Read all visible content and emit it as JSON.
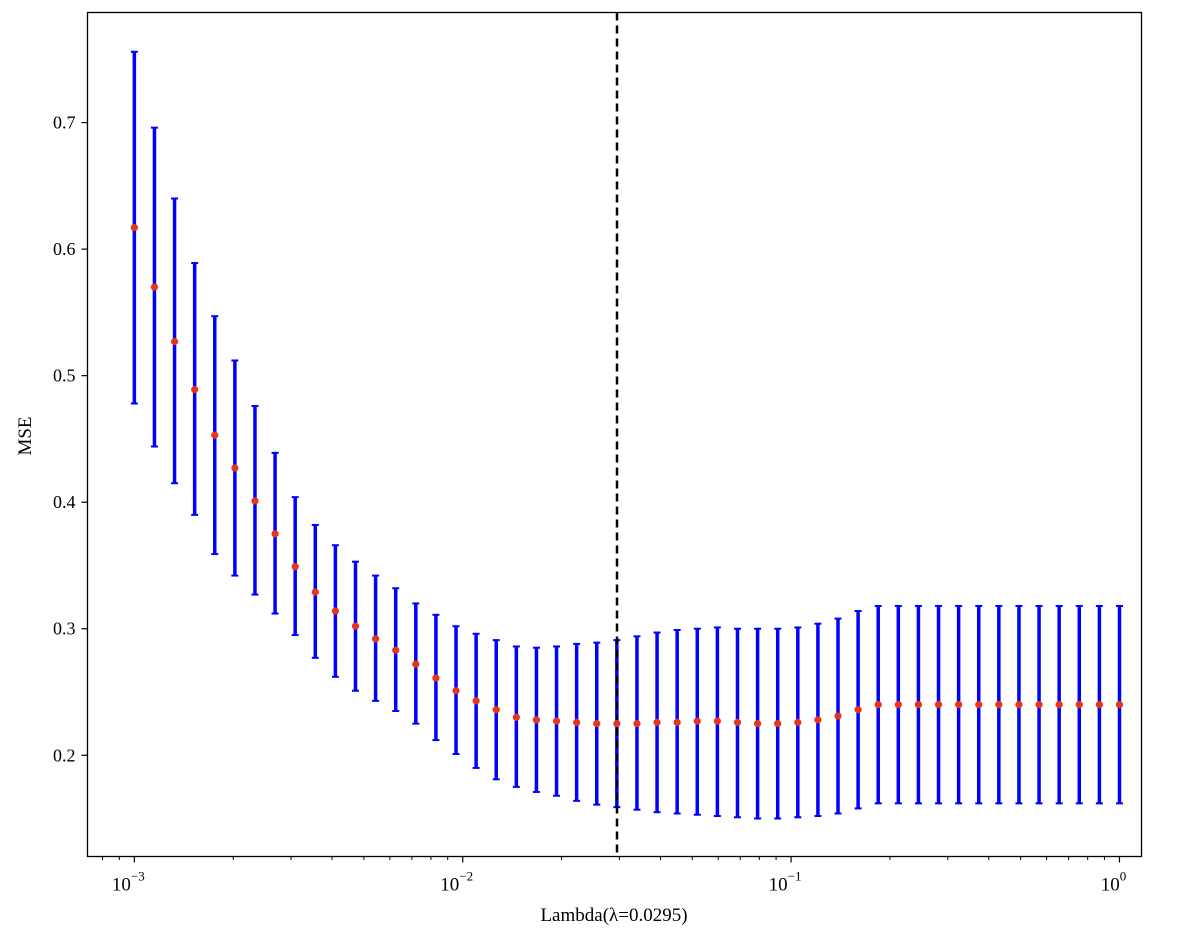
{
  "chart_data": {
    "type": "scatter",
    "title": "",
    "xlabel": "Lambda(λ=0.0295)",
    "ylabel": "MSE",
    "xscale": "log",
    "xlim": [
      0.00072,
      1.167
    ],
    "ylim": [
      0.12,
      0.787
    ],
    "x_ticks": [
      {
        "value": 0.001,
        "base": "10",
        "exp": "−3"
      },
      {
        "value": 0.01,
        "base": "10",
        "exp": "−2"
      },
      {
        "value": 0.1,
        "base": "10",
        "exp": "−1"
      },
      {
        "value": 1,
        "base": "10",
        "exp": "0"
      }
    ],
    "y_ticks": [
      {
        "value": 0.2,
        "label": "0.2"
      },
      {
        "value": 0.3,
        "label": "0.3"
      },
      {
        "value": 0.4,
        "label": "0.4"
      },
      {
        "value": 0.5,
        "label": "0.5"
      },
      {
        "value": 0.6,
        "label": "0.6"
      },
      {
        "value": 0.7,
        "label": "0.7"
      }
    ],
    "selected_lambda": 0.0295,
    "grid": false,
    "x_range": {
      "start": 0.001,
      "end": 1,
      "count": 50
    },
    "series": [
      {
        "name": "MSE",
        "point_color": "#e8341c",
        "errorbar_color": "#0000ff",
        "mean": [
          0.617,
          0.57,
          0.527,
          0.489,
          0.453,
          0.427,
          0.401,
          0.375,
          0.349,
          0.329,
          0.314,
          0.302,
          0.292,
          0.283,
          0.272,
          0.261,
          0.251,
          0.243,
          0.236,
          0.23,
          0.228,
          0.227,
          0.226,
          0.225,
          0.225,
          0.225,
          0.226,
          0.226,
          0.227,
          0.227,
          0.226,
          0.225,
          0.225,
          0.226,
          0.228,
          0.231,
          0.236,
          0.24,
          0.24,
          0.24,
          0.24,
          0.24,
          0.24,
          0.24,
          0.24,
          0.24,
          0.24,
          0.24,
          0.24,
          0.24
        ],
        "upper": [
          0.756,
          0.696,
          0.64,
          0.589,
          0.547,
          0.512,
          0.476,
          0.439,
          0.404,
          0.382,
          0.366,
          0.353,
          0.342,
          0.332,
          0.32,
          0.311,
          0.302,
          0.296,
          0.291,
          0.286,
          0.285,
          0.286,
          0.288,
          0.289,
          0.291,
          0.294,
          0.297,
          0.299,
          0.3,
          0.301,
          0.3,
          0.3,
          0.3,
          0.301,
          0.304,
          0.308,
          0.314,
          0.318,
          0.318,
          0.318,
          0.318,
          0.318,
          0.318,
          0.318,
          0.318,
          0.318,
          0.318,
          0.318,
          0.318,
          0.318
        ],
        "lower": [
          0.478,
          0.444,
          0.415,
          0.39,
          0.359,
          0.342,
          0.327,
          0.312,
          0.295,
          0.277,
          0.262,
          0.251,
          0.243,
          0.235,
          0.225,
          0.212,
          0.201,
          0.19,
          0.181,
          0.175,
          0.171,
          0.168,
          0.164,
          0.161,
          0.159,
          0.157,
          0.155,
          0.154,
          0.153,
          0.152,
          0.151,
          0.15,
          0.15,
          0.151,
          0.152,
          0.154,
          0.158,
          0.162,
          0.162,
          0.162,
          0.162,
          0.162,
          0.162,
          0.162,
          0.162,
          0.162,
          0.162,
          0.162,
          0.162,
          0.162
        ]
      }
    ]
  }
}
